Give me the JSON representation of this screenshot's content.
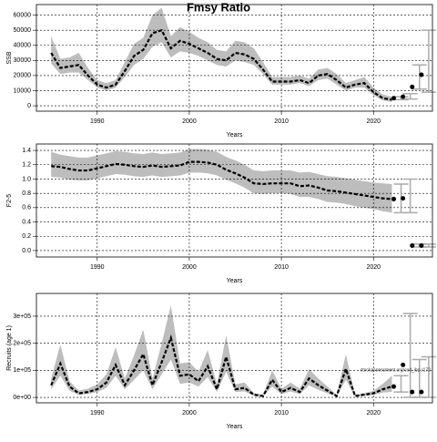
{
  "chart_data": [
    {
      "type": "band-line",
      "title": "Fmsy Ratio",
      "ylabel": "SSB",
      "xlabel": "Years",
      "x": [
        1985,
        1986,
        1987,
        1988,
        1989,
        1990,
        1991,
        1992,
        1993,
        1994,
        1995,
        1996,
        1997,
        1998,
        1999,
        2000,
        2001,
        2002,
        2003,
        2004,
        2005,
        2006,
        2007,
        2008,
        2009,
        2010,
        2011,
        2012,
        2013,
        2014,
        2015,
        2016,
        2017,
        2018,
        2019,
        2020,
        2021,
        2022
      ],
      "values": [
        35000,
        25000,
        26000,
        27000,
        20000,
        14000,
        12000,
        14000,
        23000,
        33000,
        37000,
        48000,
        50000,
        38000,
        43000,
        41000,
        38000,
        35000,
        31000,
        30000,
        35000,
        34000,
        31000,
        24000,
        16000,
        16000,
        16000,
        17000,
        15000,
        20000,
        21000,
        17000,
        12000,
        14000,
        15000,
        9000,
        5000,
        4000
      ],
      "lower": [
        28000,
        21000,
        22000,
        22000,
        17000,
        12000,
        10000,
        12000,
        19000,
        27000,
        31000,
        39000,
        42000,
        32000,
        36000,
        35000,
        33000,
        30000,
        27000,
        26000,
        30000,
        29000,
        27000,
        21000,
        14000,
        14000,
        14000,
        15000,
        13000,
        17000,
        18000,
        14000,
        10000,
        12000,
        12000,
        7000,
        3500,
        2500
      ],
      "upper": [
        46000,
        31000,
        32000,
        35000,
        25000,
        17000,
        15000,
        17000,
        29000,
        41000,
        45000,
        60000,
        65000,
        46000,
        52000,
        49000,
        45000,
        42000,
        37000,
        36000,
        43000,
        42000,
        38000,
        29000,
        19000,
        19000,
        19000,
        20000,
        18000,
        24000,
        25000,
        21000,
        15000,
        17000,
        19000,
        12000,
        7500,
        6000
      ],
      "points": {
        "x": [
          2022.2,
          2023.2,
          2024.2,
          2025.2
        ],
        "values": [
          5000,
          6000,
          12500,
          20500
        ],
        "lower": [
          4000,
          4500,
          11000,
          9000
        ],
        "upper": [
          6000,
          8000,
          27000,
          50000
        ]
      },
      "xlim": [
        1983.4,
        2026.4
      ],
      "ylim": [
        -3600,
        67000
      ],
      "xticks": [
        1990,
        2000,
        2010,
        2020
      ],
      "yticks": [
        0,
        10000,
        20000,
        30000,
        40000,
        50000,
        60000
      ],
      "grid": true,
      "color": "#000000",
      "band_color": "#bdbdbd"
    },
    {
      "type": "band-line",
      "ylabel": "F2-5",
      "xlabel": "Years",
      "x": [
        1985,
        1986,
        1987,
        1988,
        1989,
        1990,
        1991,
        1992,
        1993,
        1994,
        1995,
        1996,
        1997,
        1998,
        1999,
        2000,
        2001,
        2002,
        2003,
        2004,
        2005,
        2006,
        2007,
        2008,
        2009,
        2010,
        2011,
        2012,
        2013,
        2014,
        2015,
        2016,
        2017,
        2018,
        2019,
        2020,
        2021,
        2022
      ],
      "values": [
        1.18,
        1.17,
        1.14,
        1.12,
        1.12,
        1.15,
        1.18,
        1.21,
        1.2,
        1.18,
        1.17,
        1.19,
        1.17,
        1.18,
        1.19,
        1.24,
        1.24,
        1.23,
        1.2,
        1.13,
        1.08,
        1.02,
        0.94,
        0.93,
        0.94,
        0.94,
        0.94,
        0.9,
        0.91,
        0.88,
        0.84,
        0.83,
        0.81,
        0.79,
        0.77,
        0.75,
        0.73,
        0.72
      ],
      "lower": [
        1.03,
        1.02,
        0.99,
        0.98,
        0.98,
        1.01,
        1.04,
        1.07,
        1.06,
        1.04,
        1.03,
        1.05,
        1.03,
        1.04,
        1.05,
        1.09,
        1.09,
        1.08,
        1.05,
        0.99,
        0.94,
        0.88,
        0.8,
        0.79,
        0.8,
        0.8,
        0.79,
        0.75,
        0.75,
        0.72,
        0.68,
        0.67,
        0.65,
        0.62,
        0.6,
        0.58,
        0.55,
        0.53
      ],
      "upper": [
        1.38,
        1.34,
        1.32,
        1.3,
        1.3,
        1.33,
        1.36,
        1.39,
        1.38,
        1.36,
        1.35,
        1.37,
        1.35,
        1.36,
        1.37,
        1.42,
        1.42,
        1.41,
        1.38,
        1.31,
        1.26,
        1.2,
        1.12,
        1.11,
        1.12,
        1.12,
        1.12,
        1.09,
        1.1,
        1.07,
        1.04,
        1.03,
        1.01,
        0.99,
        0.97,
        0.95,
        0.94,
        0.93
      ],
      "points": {
        "x": [
          2022.2,
          2023.2,
          2024.2,
          2025.2
        ],
        "values": [
          0.72,
          0.73,
          0.07,
          0.07
        ],
        "lower": [
          0.53,
          0.53,
          0.05,
          0.05
        ],
        "upper": [
          0.93,
          1.0,
          0.09,
          0.09
        ]
      },
      "xlim": [
        1983.4,
        2026.4
      ],
      "ylim": [
        -0.09,
        1.49
      ],
      "xticks": [
        1990,
        2000,
        2010,
        2020
      ],
      "yticks": [
        {
          "value": 0,
          "label": "0.0"
        },
        0.2,
        0.4,
        0.6,
        0.8,
        {
          "value": 1,
          "label": "1.0"
        },
        1.2,
        1.4
      ],
      "grid": true,
      "color": "#000000",
      "band_color": "#bdbdbd"
    },
    {
      "type": "band-line",
      "ylabel": "Recruits (age 1)",
      "xlabel": "Years",
      "annotation": "stockassessment.org/cod_ibp.r172",
      "x": [
        1985,
        1986,
        1987,
        1988,
        1989,
        1990,
        1991,
        1992,
        1993,
        1994,
        1995,
        1996,
        1997,
        1998,
        1999,
        2000,
        2001,
        2002,
        2003,
        2004,
        2005,
        2006,
        2007,
        2008,
        2009,
        2010,
        2011,
        2012,
        2013,
        2014,
        2015,
        2016,
        2017,
        2018,
        2019,
        2020,
        2021,
        2022
      ],
      "values": [
        45000,
        125000,
        40000,
        15000,
        20000,
        30000,
        55000,
        120000,
        45000,
        100000,
        160000,
        45000,
        130000,
        220000,
        80000,
        85000,
        60000,
        115000,
        30000,
        150000,
        30000,
        35000,
        10000,
        5000,
        65000,
        20000,
        35000,
        20000,
        70000,
        45000,
        25000,
        5000,
        105000,
        5000,
        10000,
        15000,
        30000,
        40000
      ],
      "lower": [
        30000,
        80000,
        25000,
        9000,
        13000,
        20000,
        35000,
        80000,
        30000,
        65000,
        100000,
        30000,
        85000,
        140000,
        50000,
        55000,
        40000,
        75000,
        20000,
        95000,
        20000,
        22000,
        6000,
        3000,
        40000,
        12000,
        22000,
        12000,
        45000,
        28000,
        15000,
        3000,
        65000,
        3000,
        6000,
        9000,
        18000,
        20000
      ],
      "upper": [
        70000,
        195000,
        60000,
        25000,
        32000,
        48000,
        85000,
        185000,
        70000,
        155000,
        250000,
        70000,
        200000,
        340000,
        125000,
        130000,
        95000,
        175000,
        48000,
        230000,
        48000,
        55000,
        16000,
        9000,
        100000,
        32000,
        55000,
        32000,
        105000,
        70000,
        40000,
        9000,
        160000,
        9000,
        16000,
        24000,
        50000,
        80000
      ],
      "points": {
        "x": [
          2022.2,
          2023.2,
          2024.2,
          2025.2
        ],
        "values": [
          40000,
          120000,
          20000,
          20000
        ],
        "lower": [
          20000,
          0,
          0,
          0
        ],
        "upper": [
          80000,
          310000,
          140000,
          150000
        ]
      },
      "xlim": [
        1983.4,
        2026.4
      ],
      "ylim": [
        -20000,
        384000
      ],
      "xticks": [
        1990,
        2000,
        2010,
        2020
      ],
      "yticks": [
        {
          "value": 0,
          "label": "0e+00"
        },
        {
          "value": 100000,
          "label": "1e+05"
        },
        {
          "value": 200000,
          "label": "2e+05"
        },
        {
          "value": 300000,
          "label": "3e+05"
        }
      ],
      "grid": true,
      "color": "#000000",
      "band_color": "#bdbdbd"
    }
  ]
}
